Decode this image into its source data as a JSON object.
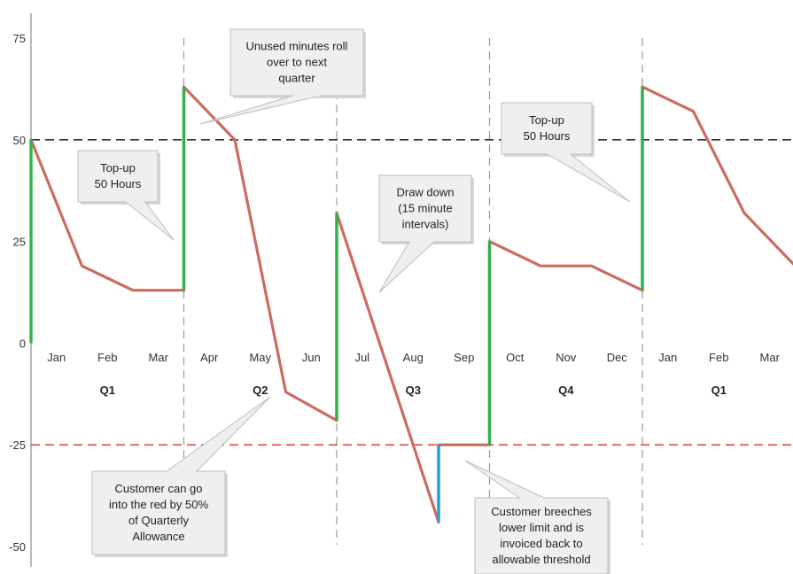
{
  "chart_data": {
    "type": "line",
    "title": "",
    "xlabel": "",
    "ylabel": "",
    "ylim": [
      -50,
      75
    ],
    "y_ticks": [
      75,
      50,
      25,
      0,
      -25,
      -50
    ],
    "months": [
      "Jan",
      "Feb",
      "Mar",
      "Apr",
      "May",
      "Jun",
      "Jul",
      "Aug",
      "Sep",
      "Oct",
      "Nov",
      "Dec",
      "Jan",
      "Feb",
      "Mar"
    ],
    "quarters": [
      "Q1",
      "Q2",
      "Q3",
      "Q4",
      "Q1"
    ],
    "grid": false,
    "reference_lines": [
      {
        "y": 50,
        "color": "#333333",
        "style": "dashed"
      },
      {
        "y": -25,
        "color": "#e84a4a",
        "style": "dashed"
      }
    ],
    "series": [
      {
        "color": "#cc6b60",
        "points": [
          [
            0,
            50
          ],
          [
            1,
            19
          ],
          [
            2,
            13
          ],
          [
            3,
            13
          ],
          [
            3,
            63
          ],
          [
            4,
            50
          ],
          [
            5,
            -12
          ],
          [
            6,
            -19
          ],
          [
            6,
            32
          ],
          [
            8,
            -44
          ],
          [
            8,
            -25
          ],
          [
            9,
            -25
          ],
          [
            9,
            25
          ],
          [
            10,
            19
          ],
          [
            11,
            19
          ],
          [
            12,
            13
          ],
          [
            12,
            63
          ],
          [
            13,
            57
          ],
          [
            14,
            32
          ],
          [
            15,
            19
          ]
        ]
      }
    ],
    "topup_segments": [
      {
        "x": 0,
        "from": 0,
        "to": 50,
        "color": "#2db34a"
      },
      {
        "x": 3,
        "from": 13,
        "to": 63,
        "color": "#2db34a"
      },
      {
        "x": 6,
        "from": -19,
        "to": 32,
        "color": "#2db34a"
      },
      {
        "x": 9,
        "from": -25,
        "to": 25,
        "color": "#2db34a"
      },
      {
        "x": 12,
        "from": 13,
        "to": 63,
        "color": "#2db34a"
      },
      {
        "x": 8,
        "from": -44,
        "to": -25,
        "color": "#1aa3e0"
      }
    ],
    "annotations": [
      {
        "lines": [
          "Unused minutes roll",
          "over to next",
          "quarter"
        ]
      },
      {
        "lines": [
          "Top-up",
          "50 Hours"
        ]
      },
      {
        "lines": [
          "Draw down",
          "(15 minute",
          "intervals)"
        ]
      },
      {
        "lines": [
          "Top-up",
          "50 Hours"
        ]
      },
      {
        "lines": [
          "Customer can go",
          "into the red by 50%",
          "of Quarterly",
          "Allowance"
        ]
      },
      {
        "lines": [
          "Customer breeches",
          "lower limit and is",
          "invoiced back to",
          "allowable threshold"
        ]
      }
    ]
  }
}
